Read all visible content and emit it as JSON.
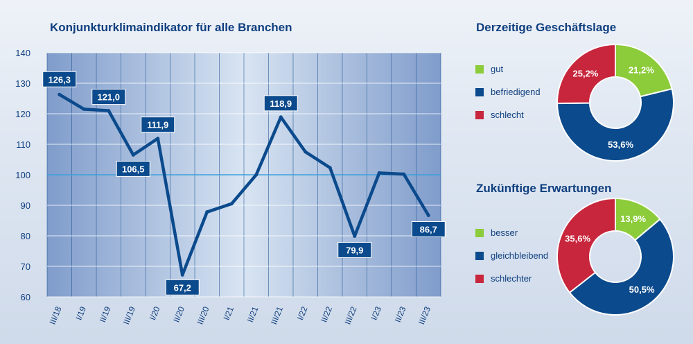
{
  "colors": {
    "line": "#0b4a8c",
    "label_bg": "#0b4a8c",
    "green": "#8ccc3a",
    "blue": "#0b4a8c",
    "red": "#c8263c",
    "ref_line": "#3aa0dc"
  },
  "chart_data": [
    {
      "type": "line",
      "title": "Konjunkturklimaindikator für alle Branchen",
      "x": [
        "III/18",
        "I/19",
        "II/19",
        "III/19",
        "I/20",
        "II/20",
        "III/20",
        "I/21",
        "II/21",
        "III/21",
        "I/22",
        "II/22",
        "III/22",
        "I/23",
        "II/23",
        "III/23"
      ],
      "values": [
        126.3,
        121.5,
        121.0,
        106.5,
        111.9,
        67.2,
        87.8,
        90.5,
        100.0,
        118.9,
        107.5,
        102.3,
        79.9,
        100.6,
        100.2,
        86.7
      ],
      "data_labels": [
        {
          "index": 0,
          "text": "126,3"
        },
        {
          "index": 2,
          "text": "121,0"
        },
        {
          "index": 3,
          "text": "106,5"
        },
        {
          "index": 4,
          "text": "111,9"
        },
        {
          "index": 5,
          "text": "67,2"
        },
        {
          "index": 9,
          "text": "118,9"
        },
        {
          "index": 12,
          "text": "79,9"
        },
        {
          "index": 15,
          "text": "86,7"
        }
      ],
      "yticks": [
        "60",
        "70",
        "80",
        "90",
        "100",
        "110",
        "120",
        "130",
        "140"
      ],
      "ylim": [
        60,
        140
      ],
      "reference_line": 100,
      "grid": true
    },
    {
      "type": "pie",
      "title": "Derzeitige Geschäftslage",
      "labels": [
        "gut",
        "befriedigend",
        "schlecht"
      ],
      "values": [
        21.2,
        53.6,
        25.2
      ],
      "value_labels": [
        "21,2%",
        "53,6%",
        "25,2%"
      ]
    },
    {
      "type": "pie",
      "title": "Zukünftige Erwartungen",
      "labels": [
        "besser",
        "gleichbleibend",
        "schlechter"
      ],
      "values": [
        13.9,
        50.5,
        35.6
      ],
      "value_labels": [
        "13,9%",
        "50,5%",
        "35,6%"
      ]
    }
  ]
}
